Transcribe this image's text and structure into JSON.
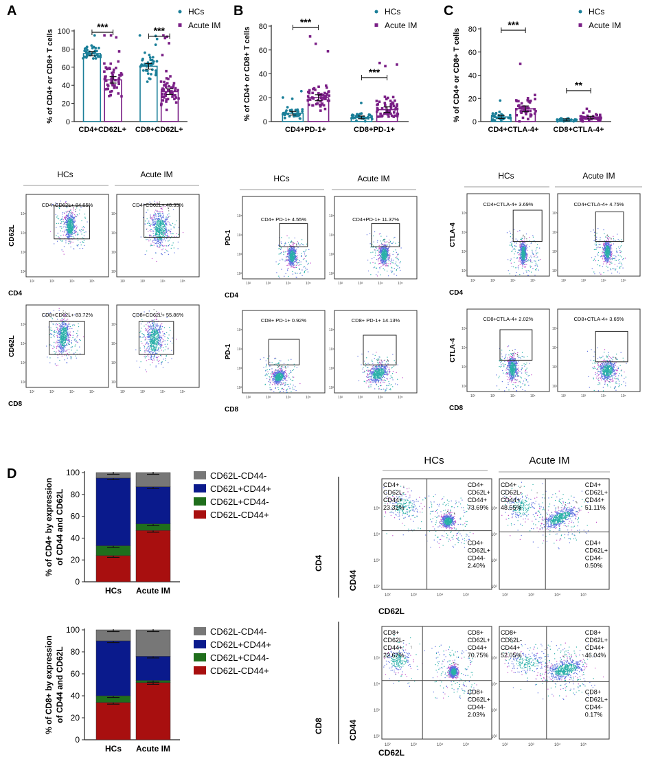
{
  "colors": {
    "hc": "#1b7f99",
    "im": "#7a1f86",
    "gray": "#777777",
    "navy": "#0a1a8c",
    "green": "#1f6e1c",
    "red": "#a80f0f",
    "axis": "#222222"
  },
  "legend": {
    "hc": "HCs",
    "im": "Acute IM"
  },
  "chart_data": [
    {
      "panel": "A",
      "type": "bar",
      "ylabel": "% of CD4+ or CD8+ T cells",
      "ylim": [
        0,
        100
      ],
      "yticks": [
        0,
        20,
        40,
        60,
        80,
        100
      ],
      "categories": [
        "CD4+CD62L+",
        "CD8+CD62L+"
      ],
      "series": [
        {
          "name": "HCs",
          "values": [
            75,
            61
          ],
          "spread": [
            8,
            11
          ],
          "n": 40
        },
        {
          "name": "Acute IM",
          "values": [
            46,
            33
          ],
          "spread": [
            15,
            13
          ],
          "n": 55
        }
      ],
      "significance": [
        "***",
        "***"
      ]
    },
    {
      "panel": "B",
      "type": "bar",
      "ylabel": "% of CD4+ or CD8+ T cells",
      "ylim": [
        0,
        80
      ],
      "yticks": [
        0,
        20,
        40,
        60,
        80
      ],
      "categories": [
        "CD4+PD-1+",
        "CD8+PD-1+"
      ],
      "series": [
        {
          "name": "HCs",
          "values": [
            7,
            3.5
          ],
          "spread": [
            4,
            2.5
          ],
          "n": 35
        },
        {
          "name": "Acute IM",
          "values": [
            20,
            10
          ],
          "spread": [
            10,
            9
          ],
          "n": 55
        }
      ],
      "significance": [
        "***",
        "***"
      ]
    },
    {
      "panel": "C",
      "type": "bar",
      "ylabel": "% of CD4+ or CD8+ T cells",
      "ylim": [
        0,
        80
      ],
      "yticks": [
        0,
        20,
        40,
        60,
        80
      ],
      "categories": [
        "CD4+CTLA-4+",
        "CD8+CTLA-4+"
      ],
      "series": [
        {
          "name": "HCs",
          "values": [
            4,
            1.5
          ],
          "spread": [
            3,
            1.5
          ],
          "n": 30
        },
        {
          "name": "Acute IM",
          "values": [
            11,
            3.5
          ],
          "spread": [
            9,
            2.5
          ],
          "n": 45
        }
      ],
      "significance": [
        "***",
        "**"
      ]
    },
    {
      "panel": "D1",
      "type": "bar",
      "stacked": true,
      "ylabel": "% of CD4+ by expression of CD44 and CD62L",
      "ylim": [
        0,
        100
      ],
      "yticks": [
        0,
        20,
        40,
        60,
        80,
        100
      ],
      "categories": [
        "HCs",
        "Acute IM"
      ],
      "series": [
        {
          "name": "CD62L-CD44+",
          "values": [
            24,
            47
          ]
        },
        {
          "name": "CD62L+CD44-",
          "values": [
            9,
            6
          ]
        },
        {
          "name": "CD62L+CD44+",
          "values": [
            62,
            34
          ]
        },
        {
          "name": "CD62L-CD44-",
          "values": [
            5,
            13
          ]
        }
      ],
      "legend_order": [
        "CD62L-CD44-",
        "CD62L+CD44+",
        "CD62L+CD44-",
        "CD62L-CD44+"
      ]
    },
    {
      "panel": "D2",
      "type": "bar",
      "stacked": true,
      "ylabel": "% of CD8+ by expression of CD44 and CD62L",
      "ylim": [
        0,
        100
      ],
      "yticks": [
        0,
        20,
        40,
        60,
        80,
        100
      ],
      "categories": [
        "HCs",
        "Acute IM"
      ],
      "series": [
        {
          "name": "CD62L-CD44+",
          "values": [
            34,
            52
          ]
        },
        {
          "name": "CD62L+CD44-",
          "values": [
            6,
            2
          ]
        },
        {
          "name": "CD62L+CD44+",
          "values": [
            50,
            22
          ]
        },
        {
          "name": "CD62L-CD44-",
          "values": [
            10,
            24
          ]
        }
      ],
      "legend_order": [
        "CD62L-CD44-",
        "CD62L+CD44+",
        "CD62L+CD44-",
        "CD62L-CD44+"
      ]
    }
  ],
  "flow": {
    "headers": {
      "hc": "HCs",
      "im": "Acute IM"
    },
    "ticks": [
      "10²",
      "10³",
      "10⁴",
      "10⁵"
    ],
    "panels": [
      {
        "id": "A",
        "rows": [
          {
            "y": "CD62L",
            "x": "CD4",
            "gates": [
              "CD4+CD62L+  84.65%",
              "CD4+CD62L+  48.35%"
            ]
          },
          {
            "y": "CD62L",
            "x": "CD8",
            "gates": [
              "CD8+CD62L+  83.72%",
              "CD8+CD62L+  55.86%"
            ]
          }
        ]
      },
      {
        "id": "B",
        "rows": [
          {
            "y": "PD-1",
            "x": "CD4",
            "gates": [
              "CD4+ PD-1+  4.55%",
              "CD4+PD-1+  11.37%"
            ]
          },
          {
            "y": "PD-1",
            "x": "CD8",
            "gates": [
              "CD8+ PD-1+  0.92%",
              "CD8+ PD-1+  14.13%"
            ]
          }
        ]
      },
      {
        "id": "C",
        "rows": [
          {
            "y": "CTLA-4",
            "x": "CD4",
            "gates": [
              "CD4+CTLA-4+  3.69%",
              "CD4+CTLA-4+  4.75%"
            ]
          },
          {
            "y": "CTLA-4",
            "x": "CD8",
            "gates": [
              "CD8+CTLA-4+  2.02%",
              "CD8+CTLA-4+  3.65%"
            ]
          }
        ]
      }
    ]
  },
  "quadrant": {
    "headers": {
      "hc": "HCs",
      "im": "Acute IM"
    },
    "xlabel": "CD62L",
    "ylabel": "CD44",
    "ticks": [
      "10²",
      "10³",
      "10⁴",
      "10⁵"
    ],
    "rows": [
      {
        "cell": "CD4",
        "plots": [
          {
            "tl": "CD4+\nCD62L-\nCD44+\n23.32%",
            "tr": "CD4+\nCD62L+\nCD44+\n73.69%",
            "br": "CD4+\nCD62L+\nCD44-\n2.40%"
          },
          {
            "tl": "CD4+\nCD62L-\nCD44+\n48.55%",
            "tr": "CD4+\nCD62L+\nCD44+\n51.11%",
            "br": "CD4+\nCD62L+\nCD44-\n0.50%"
          }
        ]
      },
      {
        "cell": "CD8",
        "plots": [
          {
            "tl": "CD8+\nCD62L-\nCD44+\n22.67%",
            "tr": "CD8+\nCD62L+\nCD44+\n70.75%",
            "br": "CD8+\nCD62L+\nCD44-\n2.03%"
          },
          {
            "tl": "CD8+\nCD62L-\nCD44+\n52.05%",
            "tr": "CD8+\nCD62L+\nCD44+\n46.04%",
            "br": "CD8+\nCD62L+\nCD44-\n0.17%"
          }
        ]
      }
    ]
  }
}
